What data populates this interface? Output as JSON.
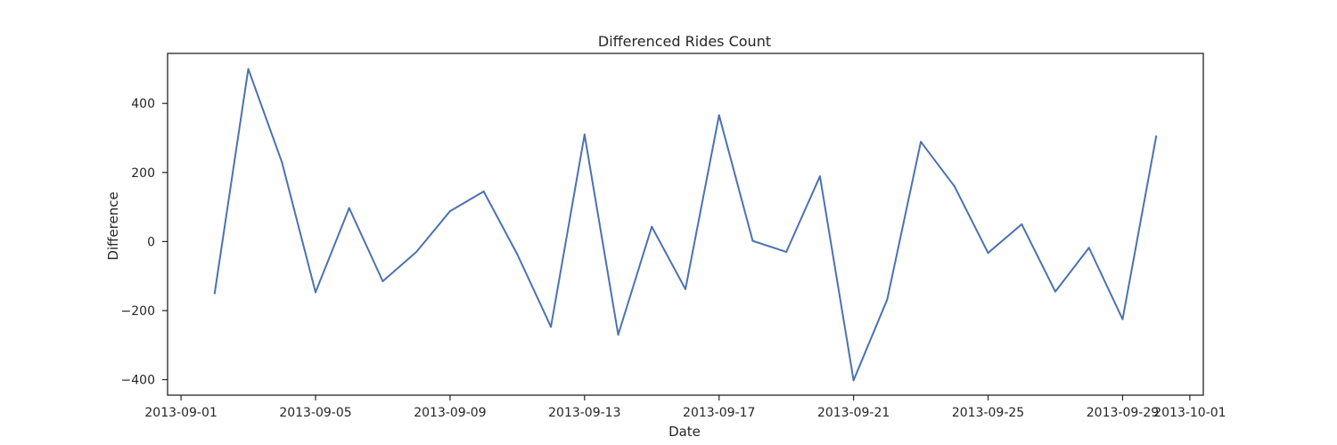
{
  "chart_data": {
    "type": "line",
    "title": "Differenced Rides Count",
    "xlabel": "Date",
    "ylabel": "Difference",
    "xlim": [
      "2013-09-01",
      "2013-10-01"
    ],
    "ylim": [
      -400,
      400
    ],
    "x_ticks": [
      "2013-09-01",
      "2013-09-05",
      "2013-09-09",
      "2013-09-13",
      "2013-09-17",
      "2013-09-21",
      "2013-09-25",
      "2013-09-29",
      "2013-10-01"
    ],
    "y_ticks": [
      -400,
      -200,
      0,
      200,
      400
    ],
    "grid": false,
    "line_color": "#4c72b0",
    "series": [
      {
        "x": [
          "2013-09-02",
          "2013-09-03",
          "2013-09-04",
          "2013-09-05",
          "2013-09-06",
          "2013-09-07",
          "2013-09-08",
          "2013-09-09",
          "2013-09-10",
          "2013-09-11",
          "2013-09-12",
          "2013-09-13",
          "2013-09-14",
          "2013-09-15",
          "2013-09-16",
          "2013-09-17",
          "2013-09-18",
          "2013-09-19",
          "2013-09-20",
          "2013-09-21",
          "2013-09-22",
          "2013-09-23",
          "2013-09-24",
          "2013-09-25",
          "2013-09-26",
          "2013-09-27",
          "2013-09-28",
          "2013-09-29",
          "2013-09-30"
        ],
        "values": [
          -150,
          500,
          230,
          -147,
          97,
          -115,
          -30,
          88,
          145,
          -37,
          -247,
          310,
          -270,
          43,
          -138,
          366,
          2,
          -30,
          189,
          -402,
          -168,
          289,
          160,
          -33,
          50,
          -145,
          -18,
          -225,
          305
        ]
      }
    ]
  }
}
